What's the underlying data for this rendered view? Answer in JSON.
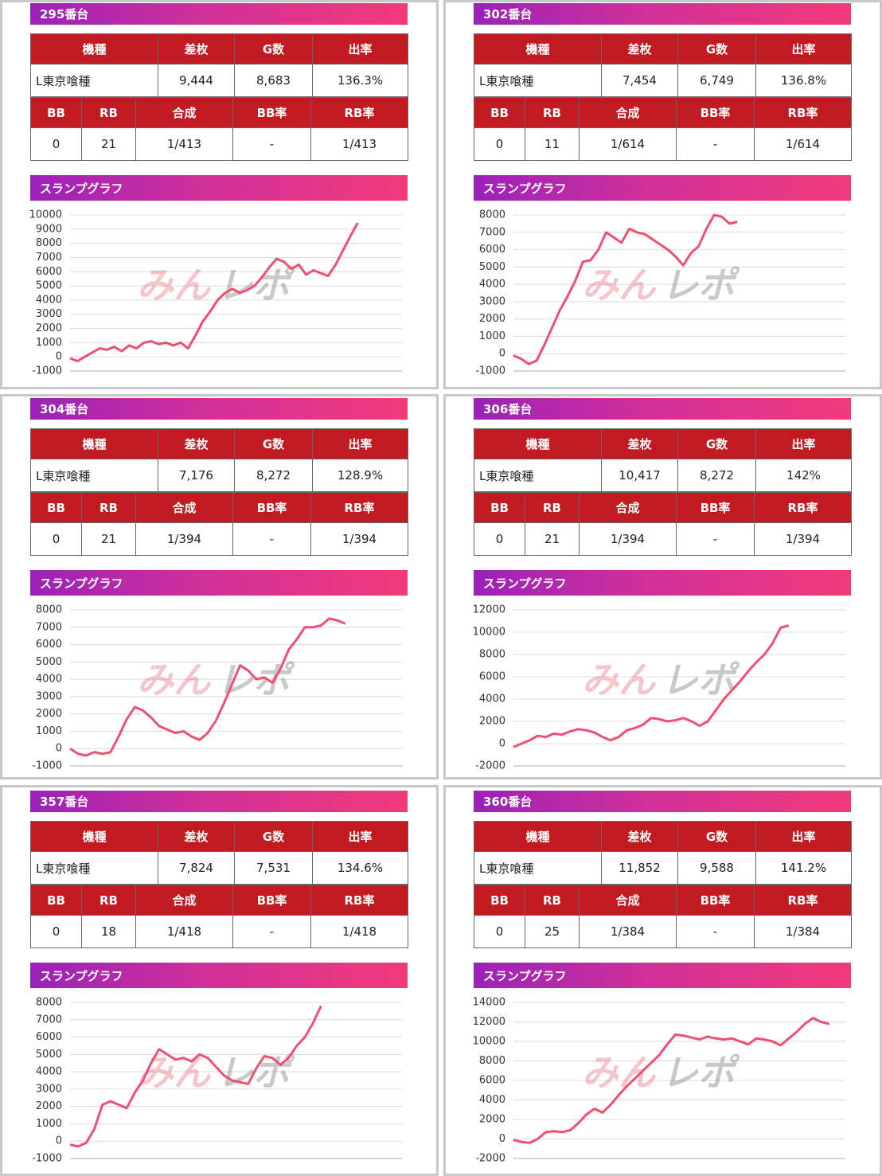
{
  "stats_headers": [
    "機種",
    "差枚",
    "G数",
    "出率"
  ],
  "bonus_headers": [
    "BB",
    "RB",
    "合成",
    "BB率",
    "RB率"
  ],
  "graph_label": "スランプグラフ",
  "watermark": [
    "みん",
    "レポ"
  ],
  "panels": [
    {
      "title": "295番台",
      "stats": [
        "L東京喰種",
        "9,444",
        "8,683",
        "136.3%"
      ],
      "bonus": [
        "0",
        "21",
        "1/413",
        "-",
        "1/413"
      ]
    },
    {
      "title": "302番台",
      "stats": [
        "L東京喰種",
        "7,454",
        "6,749",
        "136.8%"
      ],
      "bonus": [
        "0",
        "11",
        "1/614",
        "-",
        "1/614"
      ]
    },
    {
      "title": "304番台",
      "stats": [
        "L東京喰種",
        "7,176",
        "8,272",
        "128.9%"
      ],
      "bonus": [
        "0",
        "21",
        "1/394",
        "-",
        "1/394"
      ]
    },
    {
      "title": "306番台",
      "stats": [
        "L東京喰種",
        "10,417",
        "8,272",
        "142%"
      ],
      "bonus": [
        "0",
        "21",
        "1/394",
        "-",
        "1/394"
      ]
    },
    {
      "title": "357番台",
      "stats": [
        "L東京喰種",
        "7,824",
        "7,531",
        "134.6%"
      ],
      "bonus": [
        "0",
        "18",
        "1/418",
        "-",
        "1/418"
      ]
    },
    {
      "title": "360番台",
      "stats": [
        "L東京喰種",
        "11,852",
        "9,588",
        "141.2%"
      ],
      "bonus": [
        "0",
        "25",
        "1/384",
        "-",
        "1/384"
      ]
    }
  ],
  "chart_data": [
    {
      "type": "line",
      "color": "#ef5070",
      "grid": true,
      "xlim": [
        0,
        45
      ],
      "ylim": [
        -1000,
        10000
      ],
      "yticks": [
        -1000,
        0,
        1000,
        2000,
        3000,
        4000,
        5000,
        6000,
        7000,
        8000,
        9000,
        10000
      ],
      "values": [
        -100,
        -300,
        0,
        300,
        600,
        500,
        700,
        400,
        800,
        600,
        1000,
        1100,
        900,
        1000,
        800,
        1000,
        600,
        1500,
        2500,
        3200,
        4000,
        4500,
        4800,
        4500,
        4700,
        5000,
        5600,
        6300,
        6900,
        6700,
        6200,
        6500,
        5800,
        6100,
        5900,
        5700,
        6500,
        7500,
        8500,
        9444
      ]
    },
    {
      "type": "line",
      "color": "#ef5070",
      "grid": true,
      "xlim": [
        0,
        43
      ],
      "ylim": [
        -1000,
        8000
      ],
      "yticks": [
        -1000,
        0,
        1000,
        2000,
        3000,
        4000,
        5000,
        6000,
        7000,
        8000
      ],
      "values": [
        -100,
        -300,
        -600,
        -400,
        500,
        1500,
        2500,
        3300,
        4200,
        5300,
        5400,
        6000,
        7000,
        6700,
        6400,
        7200,
        7000,
        6900,
        6600,
        6300,
        6000,
        5600,
        5100,
        5800,
        6200,
        7200,
        8000,
        7900,
        7500,
        7600
      ]
    },
    {
      "type": "line",
      "color": "#ef5070",
      "grid": true,
      "xlim": [
        0,
        41
      ],
      "ylim": [
        -1000,
        8000
      ],
      "yticks": [
        -1000,
        0,
        1000,
        2000,
        3000,
        4000,
        5000,
        6000,
        7000,
        8000
      ],
      "values": [
        0,
        -300,
        -400,
        -200,
        -300,
        -200,
        700,
        1700,
        2400,
        2200,
        1800,
        1300,
        1100,
        900,
        1000,
        700,
        500,
        900,
        1600,
        2600,
        3700,
        4800,
        4500,
        4000,
        4100,
        3800,
        4600,
        5700,
        6300,
        7000,
        7000,
        7100,
        7500,
        7400,
        7200
      ]
    },
    {
      "type": "line",
      "color": "#ef5070",
      "grid": true,
      "xlim": [
        0,
        41
      ],
      "ylim": [
        -2000,
        12000
      ],
      "yticks": [
        -2000,
        0,
        2000,
        4000,
        6000,
        8000,
        10000,
        12000
      ],
      "values": [
        -300,
        0,
        300,
        700,
        600,
        900,
        800,
        1100,
        1300,
        1200,
        1000,
        600,
        300,
        600,
        1200,
        1400,
        1700,
        2300,
        2200,
        2000,
        2100,
        2300,
        2000,
        1600,
        2000,
        3000,
        4000,
        4800,
        5600,
        6500,
        7300,
        8000,
        9000,
        10400,
        10600
      ]
    },
    {
      "type": "line",
      "color": "#ef5070",
      "grid": true,
      "xlim": [
        0,
        41
      ],
      "ylim": [
        -1000,
        8000
      ],
      "yticks": [
        -1000,
        0,
        1000,
        2000,
        3000,
        4000,
        5000,
        6000,
        7000,
        8000
      ],
      "values": [
        -200,
        -300,
        -100,
        700,
        2100,
        2300,
        2100,
        1900,
        2800,
        3500,
        4500,
        5300,
        5000,
        4700,
        4800,
        4600,
        5000,
        4800,
        4300,
        3800,
        3500,
        3400,
        3300,
        4200,
        4900,
        4800,
        4400,
        4800,
        5500,
        6000,
        6800,
        7800
      ]
    },
    {
      "type": "line",
      "color": "#ef5070",
      "grid": true,
      "xlim": [
        0,
        41
      ],
      "ylim": [
        -2000,
        14000
      ],
      "yticks": [
        -2000,
        0,
        2000,
        4000,
        6000,
        8000,
        10000,
        12000,
        14000
      ],
      "values": [
        -100,
        -300,
        -400,
        0,
        700,
        800,
        700,
        900,
        1600,
        2500,
        3100,
        2700,
        3500,
        4500,
        5400,
        6200,
        7000,
        7800,
        8600,
        9700,
        10700,
        10600,
        10400,
        10200,
        10500,
        10300,
        10200,
        10300,
        10000,
        9700,
        10300,
        10200,
        10000,
        9600,
        10300,
        11000,
        11800,
        12400,
        12000,
        11800
      ]
    }
  ]
}
